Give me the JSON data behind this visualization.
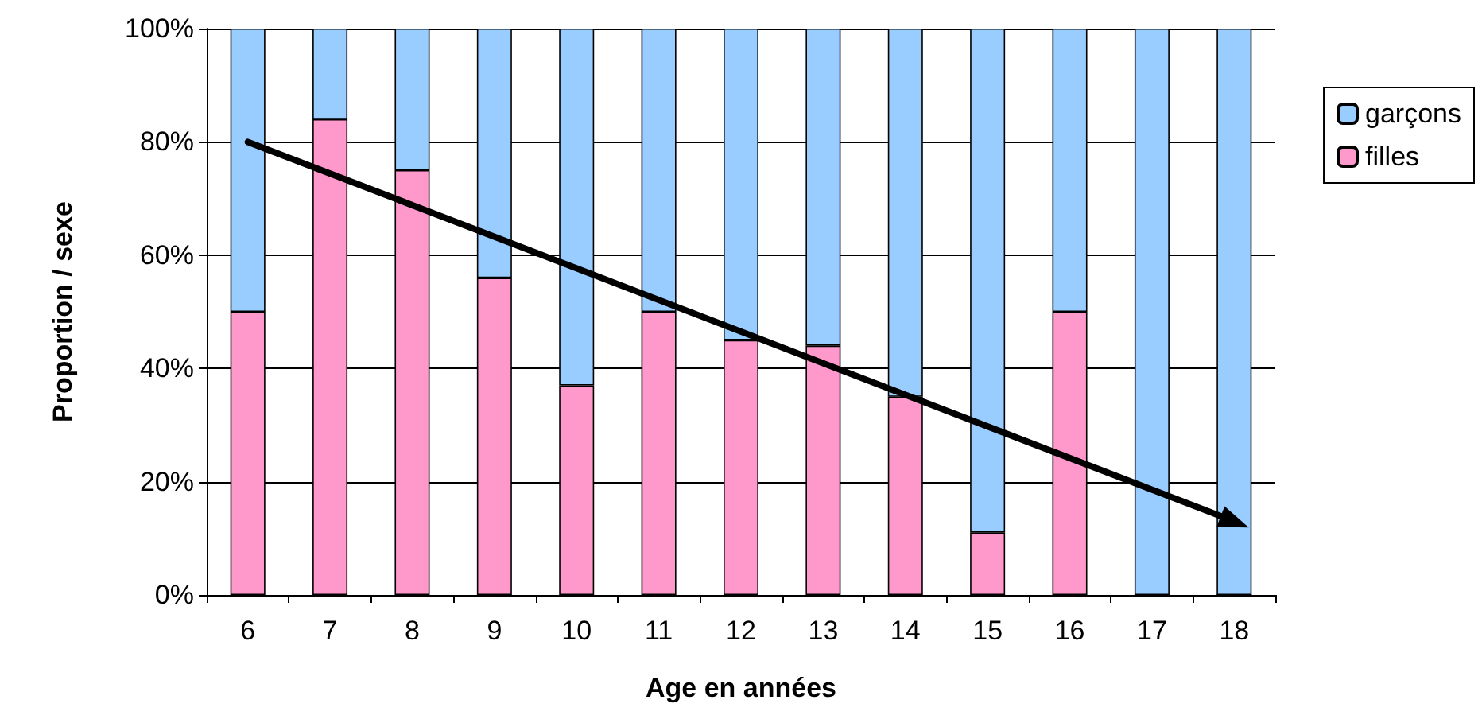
{
  "chart_data": {
    "type": "bar",
    "stacked": true,
    "xlabel": "Age en années",
    "ylabel": "Proportion / sexe",
    "categories": [
      "6",
      "7",
      "8",
      "9",
      "10",
      "11",
      "12",
      "13",
      "14",
      "15",
      "16",
      "17",
      "18"
    ],
    "series": [
      {
        "name": "filles",
        "color": "#ff99cc",
        "values": [
          50,
          84,
          75,
          56,
          37,
          50,
          45,
          44,
          35,
          11,
          50,
          0,
          0
        ]
      },
      {
        "name": "garçons",
        "color": "#99ccff",
        "values": [
          50,
          16,
          25,
          44,
          63,
          50,
          55,
          56,
          65,
          89,
          50,
          100,
          100
        ]
      },
      {
        "type": "line",
        "color": "#000000",
        "x": [
          "6",
          "18"
        ],
        "values": [
          80,
          13
        ]
      }
    ],
    "ylim": [
      0,
      100
    ],
    "yticks": [
      {
        "value": 0,
        "label": "0%"
      },
      {
        "value": 20,
        "label": "20%"
      },
      {
        "value": 40,
        "label": "40%"
      },
      {
        "value": 60,
        "label": "60%"
      },
      {
        "value": 80,
        "label": "80%"
      },
      {
        "value": 100,
        "label": "100%"
      }
    ],
    "grid": "y",
    "legend": "right"
  }
}
